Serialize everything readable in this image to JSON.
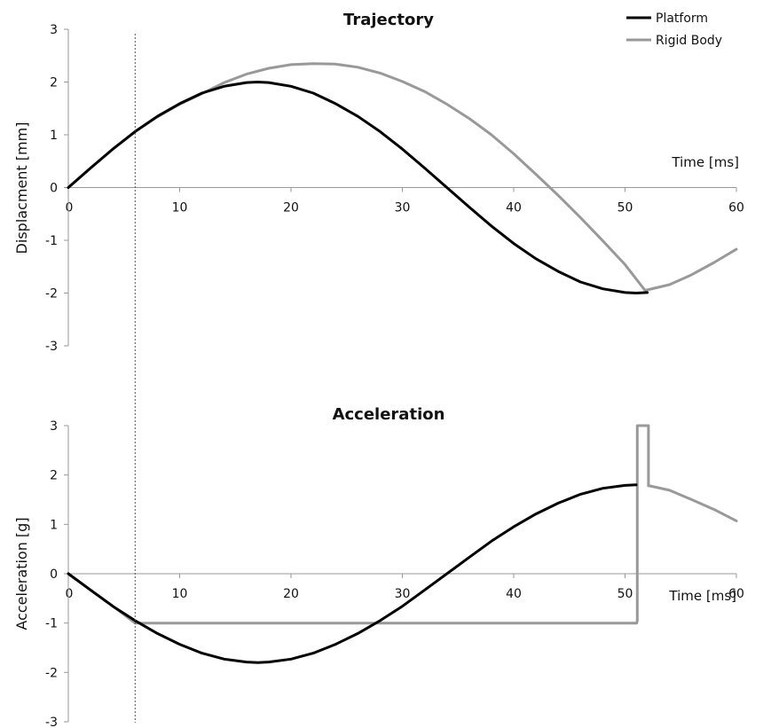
{
  "chart_data": [
    {
      "type": "line",
      "title": "Trajectory",
      "xlabel": "Time [ms]",
      "ylabel": "Displacment [mm]",
      "xlim": [
        0,
        60
      ],
      "ylim": [
        -3,
        3
      ],
      "xticks": [
        "0",
        "10",
        "20",
        "30",
        "40",
        "50",
        "60"
      ],
      "yticks": [
        "3",
        "2",
        "1",
        "0",
        "-1",
        "-2",
        "-3"
      ],
      "grid": false,
      "legend": "top-right",
      "series": [
        {
          "name": "Platform",
          "color": "#000000",
          "x": [
            0,
            2,
            4,
            6,
            8,
            10,
            12,
            14,
            16,
            17,
            18,
            20,
            22,
            24,
            26,
            28,
            30,
            32,
            34,
            36,
            38,
            40,
            42,
            44,
            46,
            48,
            50,
            51,
            52
          ],
          "y": [
            0,
            0.37,
            0.73,
            1.06,
            1.35,
            1.59,
            1.79,
            1.92,
            1.99,
            2.0,
            1.99,
            1.92,
            1.79,
            1.59,
            1.35,
            1.06,
            0.73,
            0.37,
            0,
            -0.37,
            -0.73,
            -1.06,
            -1.35,
            -1.59,
            -1.79,
            -1.92,
            -1.99,
            -2.0,
            -1.99
          ]
        },
        {
          "name": "Rigid Body",
          "color": "#999999",
          "x": [
            0,
            2,
            4,
            6,
            8,
            10,
            12,
            14,
            16,
            18,
            20,
            22,
            24,
            26,
            28,
            30,
            32,
            34,
            36,
            38,
            40,
            42,
            44,
            46,
            48,
            50,
            51.8,
            54,
            56,
            58,
            60
          ],
          "y": [
            0,
            0.37,
            0.73,
            1.06,
            1.34,
            1.58,
            1.78,
            1.99,
            2.15,
            2.26,
            2.33,
            2.35,
            2.34,
            2.28,
            2.17,
            2.01,
            1.82,
            1.58,
            1.31,
            1.0,
            0.64,
            0.25,
            -0.15,
            -0.57,
            -1.01,
            -1.46,
            -1.95,
            -1.84,
            -1.65,
            -1.42,
            -1.17
          ]
        }
      ]
    },
    {
      "type": "line",
      "title": "Acceleration",
      "xlabel": "Time [ms]",
      "ylabel": "Acceleration [g]",
      "xlim": [
        0,
        60
      ],
      "ylim": [
        -3,
        3
      ],
      "xticks": [
        "0",
        "10",
        "20",
        "30",
        "40",
        "50",
        "60"
      ],
      "yticks": [
        "3",
        "2",
        "1",
        "0",
        "-1",
        "-2",
        "-3"
      ],
      "grid": false,
      "series": [
        {
          "name": "Platform",
          "color": "#000000",
          "x": [
            0,
            2,
            4,
            6,
            8,
            10,
            12,
            14,
            16,
            17,
            18,
            20,
            22,
            24,
            26,
            28,
            30,
            32,
            34,
            36,
            38,
            40,
            42,
            44,
            46,
            48,
            50,
            51
          ],
          "y": [
            0,
            -0.33,
            -0.66,
            -0.95,
            -1.21,
            -1.43,
            -1.61,
            -1.73,
            -1.79,
            -1.8,
            -1.79,
            -1.73,
            -1.61,
            -1.43,
            -1.21,
            -0.95,
            -0.66,
            -0.33,
            0,
            0.33,
            0.66,
            0.95,
            1.21,
            1.43,
            1.61,
            1.73,
            1.79,
            1.8
          ]
        },
        {
          "name": "Rigid Body",
          "color": "#999999",
          "x": [
            0,
            2,
            4,
            6,
            51,
            51.05,
            51.1,
            51.1,
            52.1,
            52.1,
            52.2,
            54,
            56,
            58,
            60
          ],
          "y": [
            0,
            -0.33,
            -0.66,
            -1.0,
            -1.0,
            -1.0,
            -0.95,
            3.0,
            3.0,
            1.78,
            1.78,
            1.69,
            1.5,
            1.3,
            1.07
          ]
        }
      ]
    }
  ],
  "marker_x": 6
}
